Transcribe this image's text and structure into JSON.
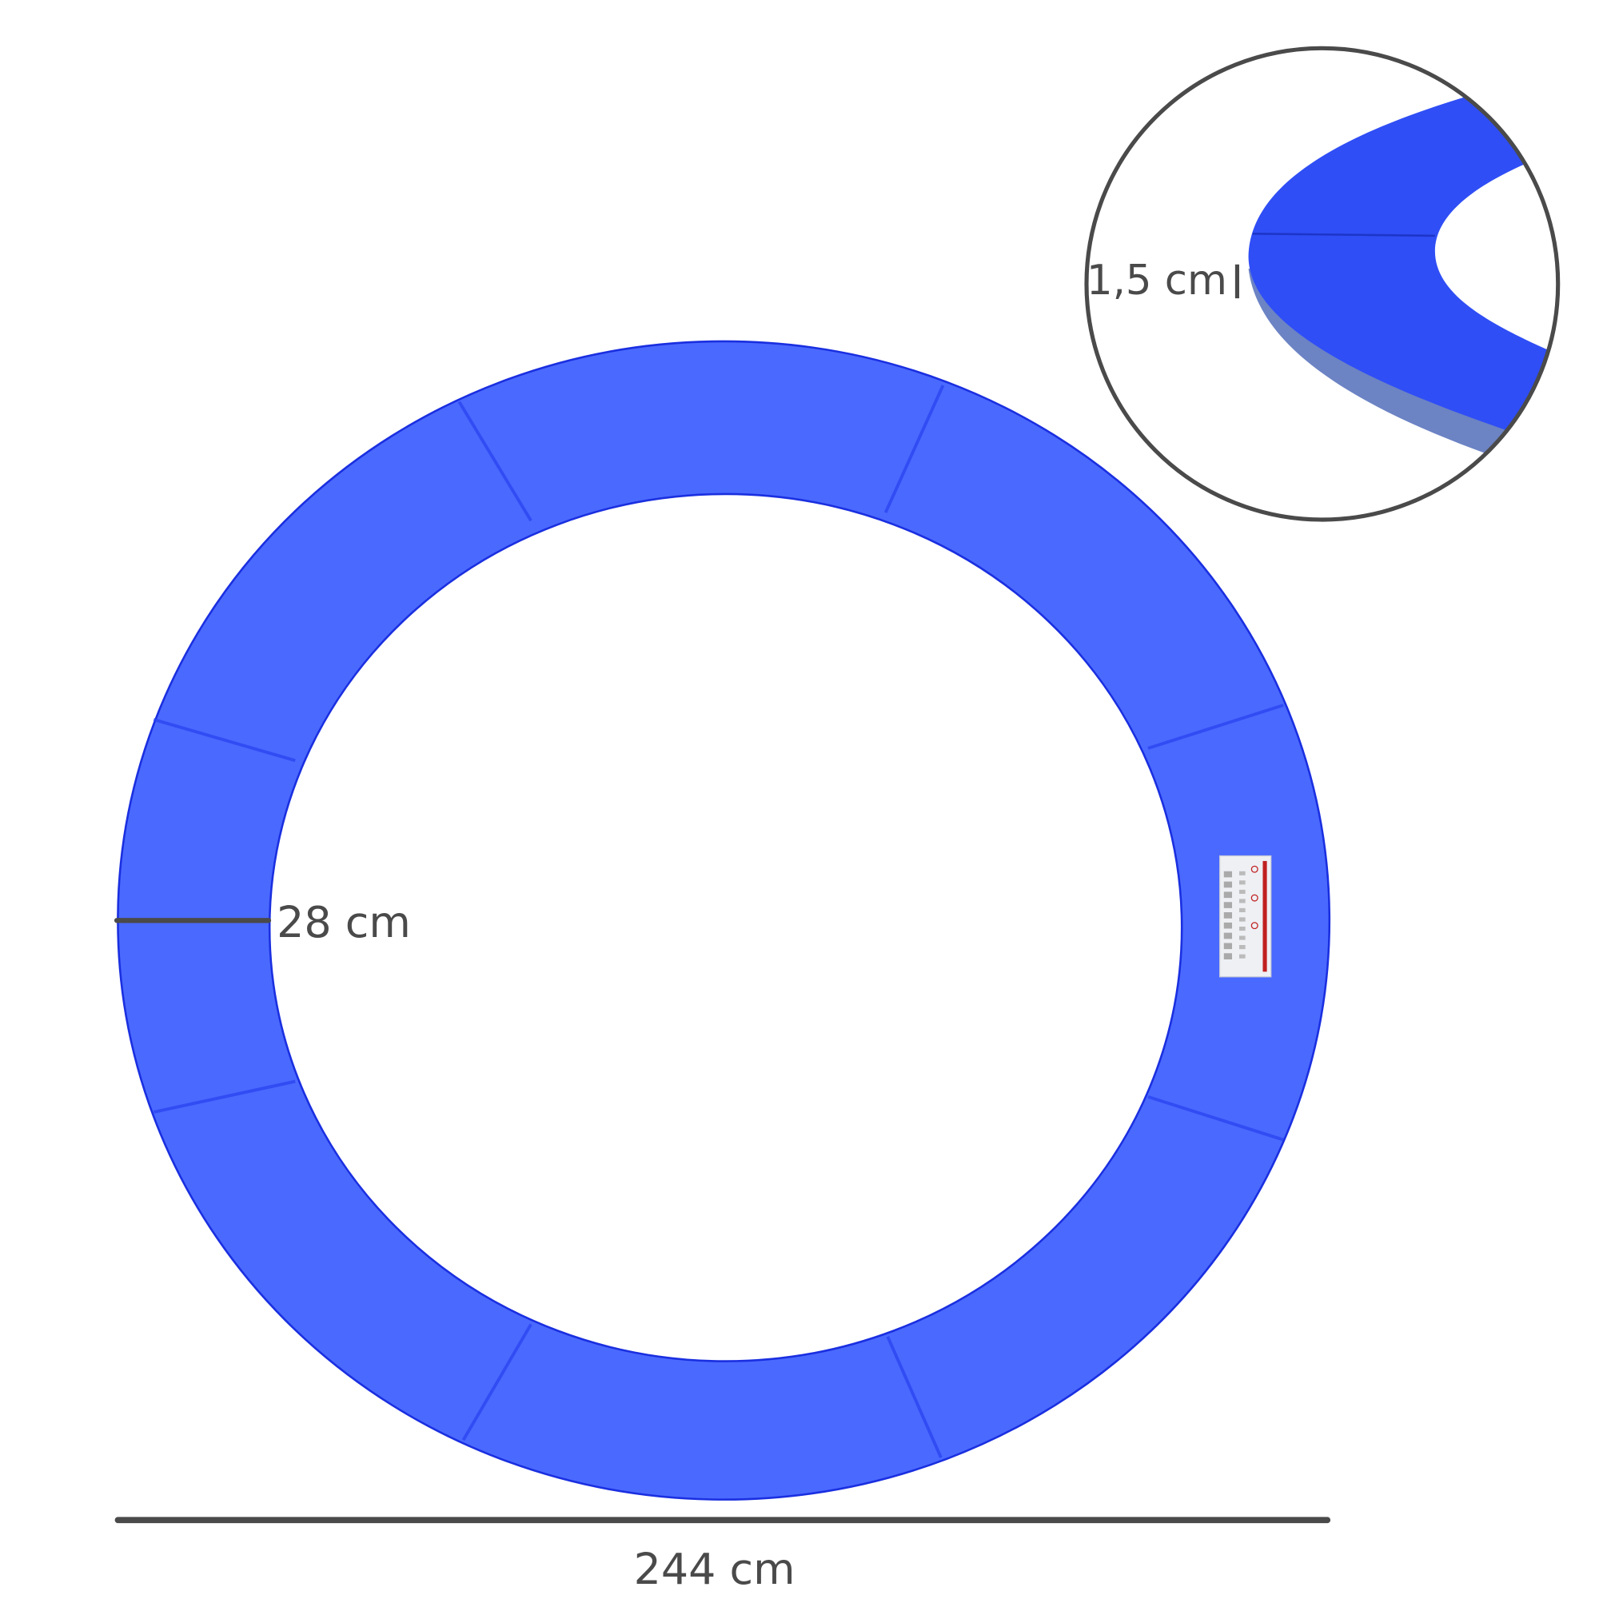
{
  "product": {
    "ring_color": "#4a69ff",
    "ring_edge_color": "#1a2fe0",
    "seam_color": "#2a45f0",
    "dimension_line_color": "#4a4a4a"
  },
  "dimensions": {
    "width_label": "28 cm",
    "diameter_label": "244 cm",
    "thickness_label": "1,5 cm"
  }
}
